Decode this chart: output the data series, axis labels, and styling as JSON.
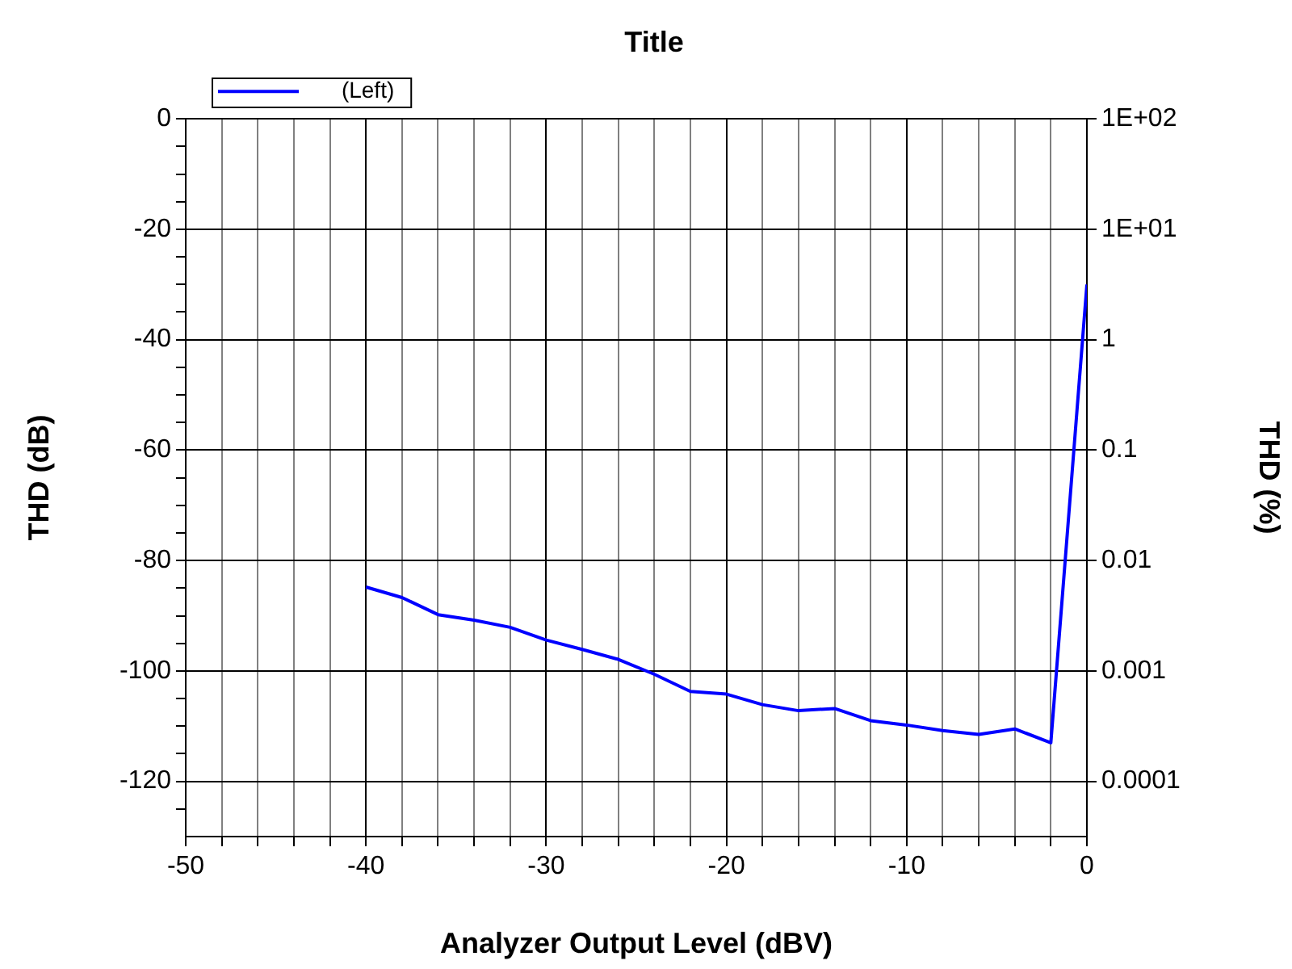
{
  "chart_data": {
    "type": "line",
    "title": "Title",
    "xlabel": "Analyzer Output Level (dBV)",
    "ylabel": "THD (dB)",
    "y2label": "THD (%)",
    "x": [
      -40,
      -38,
      -36,
      -34,
      -32,
      -30,
      -28,
      -26,
      -24,
      -22,
      -20,
      -18,
      -16,
      -14,
      -12,
      -10,
      -8,
      -6,
      -4,
      -2,
      0
    ],
    "series": [
      {
        "name": "(Left)",
        "color": "#0000ff",
        "values": [
          -84.8,
          -86.7,
          -89.8,
          -90.8,
          -92.1,
          -94.4,
          -96.1,
          -97.9,
          -100.6,
          -103.7,
          -104.2,
          -106.1,
          -107.2,
          -106.8,
          -109.0,
          -109.8,
          -110.8,
          -111.5,
          -110.5,
          -113.0,
          -30
        ]
      }
    ],
    "xlim": [
      -50,
      0
    ],
    "xticks": [
      -50,
      {
        "value": -48,
        "label": null
      },
      {
        "value": -46,
        "label": null
      },
      {
        "value": -44,
        "label": null
      },
      {
        "value": -42,
        "label": null
      },
      -40,
      {
        "value": -38,
        "label": null
      },
      {
        "value": -36,
        "label": null
      },
      {
        "value": -34,
        "label": null
      },
      {
        "value": -32,
        "label": null
      },
      -30,
      {
        "value": -28,
        "label": null
      },
      {
        "value": -26,
        "label": null
      },
      {
        "value": -24,
        "label": null
      },
      {
        "value": -22,
        "label": null
      },
      -20,
      {
        "value": -18,
        "label": null
      },
      {
        "value": -16,
        "label": null
      },
      {
        "value": -14,
        "label": null
      },
      {
        "value": -12,
        "label": null
      },
      -10,
      {
        "value": -8,
        "label": null
      },
      {
        "value": -6,
        "label": null
      },
      {
        "value": -4,
        "label": null
      },
      {
        "value": -2,
        "label": null
      },
      0
    ],
    "ylim": [
      -130,
      0
    ],
    "yticks": [
      0,
      {
        "value": -5,
        "label": null
      },
      {
        "value": -10,
        "label": null
      },
      {
        "value": -15,
        "label": null
      },
      -20,
      {
        "value": -25,
        "label": null
      },
      {
        "value": -30,
        "label": null
      },
      {
        "value": -35,
        "label": null
      },
      -40,
      {
        "value": -45,
        "label": null
      },
      {
        "value": -50,
        "label": null
      },
      {
        "value": -55,
        "label": null
      },
      -60,
      {
        "value": -65,
        "label": null
      },
      {
        "value": -70,
        "label": null
      },
      {
        "value": -75,
        "label": null
      },
      -80,
      {
        "value": -85,
        "label": null
      },
      {
        "value": -90,
        "label": null
      },
      {
        "value": -95,
        "label": null
      },
      -100,
      {
        "value": -105,
        "label": null
      },
      {
        "value": -110,
        "label": null
      },
      {
        "value": -115,
        "label": null
      },
      -120,
      {
        "value": -125,
        "label": null
      }
    ],
    "y2lim": [
      3.16e-05,
      100
    ],
    "y2ticks": [
      {
        "value": 100,
        "label": "1E+02"
      },
      {
        "value": 10,
        "label": "1E+01"
      },
      1,
      0.1,
      0.01,
      0.001,
      0.0001
    ],
    "log": "y2",
    "grid": true,
    "legend": "top left",
    "marker": "none",
    "line_style": "solid"
  }
}
